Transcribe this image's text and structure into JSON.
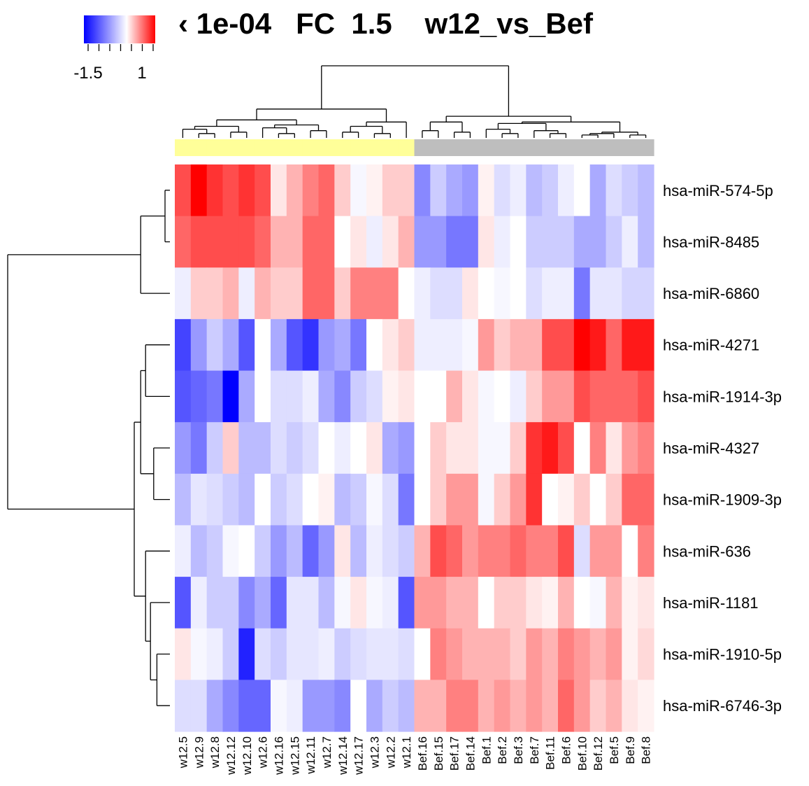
{
  "chart_data": {
    "type": "heatmap",
    "title_visible": "‹ 1e-04   FC  1.5    w12_vs_Bef",
    "colorbar": {
      "ticks": [
        "-1.5",
        "1"
      ],
      "range": [
        -1.5,
        1
      ],
      "low_color": "#0000ff",
      "mid_color": "#ffffff",
      "high_color": "#ff0000"
    },
    "group_colors": {
      "w12": "#ffff99",
      "Bef": "#bebebe"
    },
    "columns": [
      "w12.5",
      "w12.9",
      "w12.8",
      "w12.12",
      "w12.10",
      "w12.6",
      "w12.16",
      "w12.15",
      "w12.11",
      "w12.7",
      "w12.14",
      "w12.17",
      "w12.3",
      "w12.2",
      "w12.1",
      "Bef.16",
      "Bef.15",
      "Bef.17",
      "Bef.14",
      "Bef.1",
      "Bef.2",
      "Bef.3",
      "Bef.7",
      "Bef.11",
      "Bef.6",
      "Bef.10",
      "Bef.12",
      "Bef.5",
      "Bef.9",
      "Bef.8"
    ],
    "groups": [
      "w12",
      "w12",
      "w12",
      "w12",
      "w12",
      "w12",
      "w12",
      "w12",
      "w12",
      "w12",
      "w12",
      "w12",
      "w12",
      "w12",
      "w12",
      "Bef",
      "Bef",
      "Bef",
      "Bef",
      "Bef",
      "Bef",
      "Bef",
      "Bef",
      "Bef",
      "Bef",
      "Bef",
      "Bef",
      "Bef",
      "Bef",
      "Bef"
    ],
    "rows": [
      "hsa-miR-574-5p",
      "hsa-miR-8485",
      "hsa-miR-6860",
      "hsa-miR-4271",
      "hsa-miR-1914-3p",
      "hsa-miR-4327",
      "hsa-miR-1909-3p",
      "hsa-miR-636",
      "hsa-miR-1181",
      "hsa-miR-1910-5p",
      "hsa-miR-6746-3p"
    ],
    "values": [
      [
        0.7,
        1.0,
        0.8,
        0.7,
        0.8,
        0.7,
        0.1,
        0.3,
        0.5,
        0.6,
        0.2,
        -0.05,
        0.05,
        0.2,
        0.2,
        -0.7,
        -0.3,
        -0.5,
        -0.6,
        0.05,
        -0.2,
        -0.1,
        -0.4,
        -0.3,
        -0.1,
        0.0,
        -0.5,
        -0.2,
        -0.3,
        -0.4
      ],
      [
        0.6,
        0.7,
        0.7,
        0.7,
        0.7,
        0.6,
        0.3,
        0.3,
        0.6,
        0.6,
        0.0,
        0.1,
        -0.1,
        0.1,
        0.3,
        -0.6,
        -0.6,
        -0.8,
        -0.8,
        0.1,
        -0.1,
        0.0,
        -0.3,
        -0.3,
        -0.3,
        -0.5,
        -0.5,
        -0.3,
        -0.1,
        -0.4
      ],
      [
        -0.1,
        0.2,
        0.2,
        0.3,
        -0.1,
        0.3,
        0.2,
        0.2,
        0.6,
        0.6,
        0.2,
        0.5,
        0.5,
        0.5,
        0.0,
        -0.1,
        -0.2,
        -0.2,
        0.1,
        0.0,
        -0.05,
        0.0,
        -0.2,
        -0.1,
        -0.1,
        -0.8,
        -0.15,
        -0.15,
        -0.25,
        -0.25
      ],
      [
        -1.1,
        -0.6,
        -0.3,
        -0.5,
        -1.0,
        0.0,
        -0.5,
        -1.0,
        -1.2,
        -0.6,
        -0.5,
        -0.8,
        0.0,
        0.1,
        0.2,
        -0.1,
        -0.1,
        -0.1,
        -0.05,
        0.4,
        0.2,
        0.3,
        0.3,
        0.7,
        0.7,
        1.0,
        0.9,
        0.6,
        0.9,
        0.9
      ],
      [
        -1.0,
        -0.9,
        -0.8,
        -1.5,
        -0.5,
        0.0,
        -0.2,
        -0.2,
        -0.1,
        -0.5,
        -0.7,
        -0.3,
        -0.2,
        0.05,
        0.1,
        0.0,
        0.0,
        0.3,
        0.1,
        -0.05,
        0.0,
        -0.1,
        0.2,
        0.4,
        0.4,
        0.7,
        0.6,
        0.6,
        0.6,
        0.7
      ],
      [
        -0.6,
        -0.8,
        -0.3,
        0.2,
        -0.4,
        -0.4,
        -0.2,
        -0.3,
        -0.2,
        0.0,
        -0.1,
        0.0,
        0.1,
        -0.5,
        -0.6,
        0.0,
        0.2,
        0.1,
        0.1,
        -0.05,
        -0.05,
        0.2,
        0.8,
        0.9,
        0.7,
        0.0,
        0.5,
        0.1,
        0.4,
        0.5
      ],
      [
        -0.4,
        -0.15,
        -0.2,
        -0.3,
        -0.4,
        0.0,
        -0.3,
        -0.2,
        0.0,
        0.05,
        -0.4,
        -0.3,
        -0.05,
        -0.2,
        -0.8,
        0.0,
        0.2,
        0.4,
        0.4,
        -0.05,
        0.2,
        0.4,
        0.8,
        0.0,
        0.05,
        0.2,
        0.0,
        0.2,
        0.6,
        0.6
      ],
      [
        -0.1,
        -0.4,
        -0.3,
        -0.05,
        0.0,
        -0.3,
        -0.6,
        -0.4,
        -0.9,
        -0.6,
        0.1,
        -0.4,
        -0.1,
        -0.2,
        -0.3,
        0.3,
        0.7,
        0.6,
        0.4,
        0.5,
        0.5,
        0.6,
        0.5,
        0.5,
        0.7,
        -0.2,
        0.4,
        0.4,
        0.0,
        0.5
      ],
      [
        -1.0,
        -0.1,
        -0.3,
        -0.3,
        -0.7,
        -0.5,
        -0.9,
        -0.15,
        -0.15,
        -0.4,
        -0.05,
        0.1,
        -0.05,
        -0.1,
        -1.0,
        0.4,
        0.4,
        0.3,
        0.3,
        0.0,
        0.2,
        0.2,
        0.1,
        0.05,
        0.3,
        0.0,
        -0.05,
        0.3,
        0.05,
        0.1
      ],
      [
        0.1,
        -0.05,
        -0.1,
        -0.3,
        -1.3,
        -0.2,
        -0.3,
        -0.15,
        -0.15,
        -0.1,
        -0.3,
        -0.2,
        -0.15,
        -0.15,
        -0.2,
        0.0,
        0.5,
        0.4,
        0.3,
        0.3,
        0.3,
        0.2,
        0.4,
        0.3,
        0.5,
        0.4,
        0.3,
        0.4,
        0.05,
        0.15
      ],
      [
        -0.2,
        -0.2,
        -0.5,
        -0.7,
        -0.9,
        -0.9,
        -0.05,
        -0.1,
        -0.6,
        -0.6,
        -0.7,
        0.0,
        -0.5,
        -0.3,
        -0.4,
        0.3,
        0.3,
        0.5,
        0.5,
        0.3,
        0.4,
        0.3,
        0.4,
        0.3,
        0.6,
        0.4,
        0.2,
        0.3,
        0.1,
        0.05
      ]
    ]
  }
}
